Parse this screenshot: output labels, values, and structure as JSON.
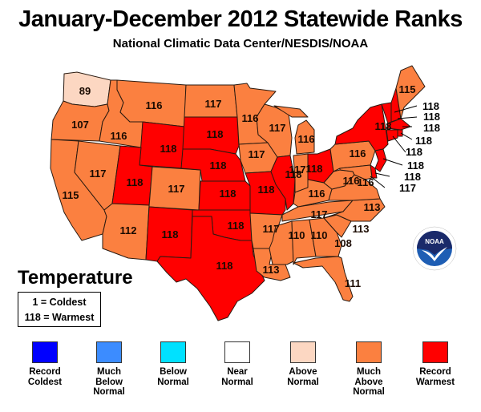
{
  "header": {
    "title": "January-December 2012 Statewide Ranks",
    "subtitle": "National Climatic Data Center/NESDIS/NOAA"
  },
  "colors": {
    "record_coldest": "#0000ff",
    "much_below": "#3c8cff",
    "below": "#00e1ff",
    "near": "#ffffff",
    "above": "#fcd7c2",
    "much_above": "#fb8040",
    "record_warmest": "#ff0000",
    "outline": "#2a1a10"
  },
  "key": {
    "title": "Temperature",
    "line1": "1 = Coldest",
    "line2": "118 = Warmest"
  },
  "legend": [
    {
      "label_lines": [
        "Record",
        "Coldest"
      ],
      "color": "#0000ff"
    },
    {
      "label_lines": [
        "Much",
        "Below",
        "Normal"
      ],
      "color": "#3c8cff"
    },
    {
      "label_lines": [
        "Below",
        "Normal"
      ],
      "color": "#00e1ff"
    },
    {
      "label_lines": [
        "Near",
        "Normal"
      ],
      "color": "#ffffff"
    },
    {
      "label_lines": [
        "Above",
        "Normal"
      ],
      "color": "#fcd7c2"
    },
    {
      "label_lines": [
        "Much",
        "Above",
        "Normal"
      ],
      "color": "#fb8040"
    },
    {
      "label_lines": [
        "Record",
        "Warmest"
      ],
      "color": "#ff0000"
    }
  ],
  "logo": {
    "text": "NOAA"
  },
  "states": {
    "WA": {
      "rank": "89",
      "category": "above"
    },
    "OR": {
      "rank": "107",
      "category": "much_above"
    },
    "CA": {
      "rank": "115",
      "category": "much_above"
    },
    "ID": {
      "rank": "116",
      "category": "much_above"
    },
    "NV": {
      "rank": "117",
      "category": "much_above"
    },
    "MT": {
      "rank": "116",
      "category": "much_above"
    },
    "WY": {
      "rank": "118",
      "category": "record_warmest"
    },
    "UT": {
      "rank": "118",
      "category": "record_warmest"
    },
    "AZ": {
      "rank": "112",
      "category": "much_above"
    },
    "CO": {
      "rank": "117",
      "category": "much_above"
    },
    "NM": {
      "rank": "118",
      "category": "record_warmest"
    },
    "ND": {
      "rank": "117",
      "category": "much_above"
    },
    "SD": {
      "rank": "118",
      "category": "record_warmest"
    },
    "NE": {
      "rank": "118",
      "category": "record_warmest"
    },
    "KS": {
      "rank": "118",
      "category": "record_warmest"
    },
    "OK": {
      "rank": "118",
      "category": "record_warmest"
    },
    "TX": {
      "rank": "118",
      "category": "record_warmest"
    },
    "MN": {
      "rank": "116",
      "category": "much_above"
    },
    "IA": {
      "rank": "117",
      "category": "much_above"
    },
    "MO": {
      "rank": "118",
      "category": "record_warmest"
    },
    "AR": {
      "rank": "117",
      "category": "much_above"
    },
    "LA": {
      "rank": "113",
      "category": "much_above"
    },
    "WI": {
      "rank": "117",
      "category": "much_above"
    },
    "IL": {
      "rank": "118",
      "category": "record_warmest"
    },
    "MI": {
      "rank": "116",
      "category": "much_above"
    },
    "IN": {
      "rank": "117",
      "category": "much_above"
    },
    "OH": {
      "rank": "118",
      "category": "record_warmest"
    },
    "KY": {
      "rank": "116",
      "category": "much_above"
    },
    "TN": {
      "rank": "117",
      "category": "much_above"
    },
    "MS": {
      "rank": "110",
      "category": "much_above"
    },
    "AL": {
      "rank": "110",
      "category": "much_above"
    },
    "GA": {
      "rank": "108",
      "category": "much_above"
    },
    "FL": {
      "rank": "111",
      "category": "much_above"
    },
    "SC": {
      "rank": "113",
      "category": "much_above"
    },
    "NC": {
      "rank": "113",
      "category": "much_above"
    },
    "VA": {
      "rank": "116",
      "category": "much_above"
    },
    "WV": {
      "rank": "116",
      "category": "much_above"
    },
    "PA": {
      "rank": "116",
      "category": "much_above"
    },
    "NY": {
      "rank": "118",
      "category": "record_warmest"
    },
    "ME": {
      "rank": "115",
      "category": "much_above"
    },
    "VT": {
      "rank": "118",
      "category": "record_warmest"
    },
    "NH": {
      "rank": "118",
      "category": "record_warmest"
    },
    "MA": {
      "rank": "118",
      "category": "record_warmest"
    },
    "RI": {
      "rank": "118",
      "category": "record_warmest"
    },
    "CT": {
      "rank": "118",
      "category": "record_warmest"
    },
    "NJ": {
      "rank": "118",
      "category": "record_warmest"
    },
    "DE": {
      "rank": "118",
      "category": "record_warmest"
    },
    "MD": {
      "rank": "117",
      "category": "much_above"
    }
  }
}
